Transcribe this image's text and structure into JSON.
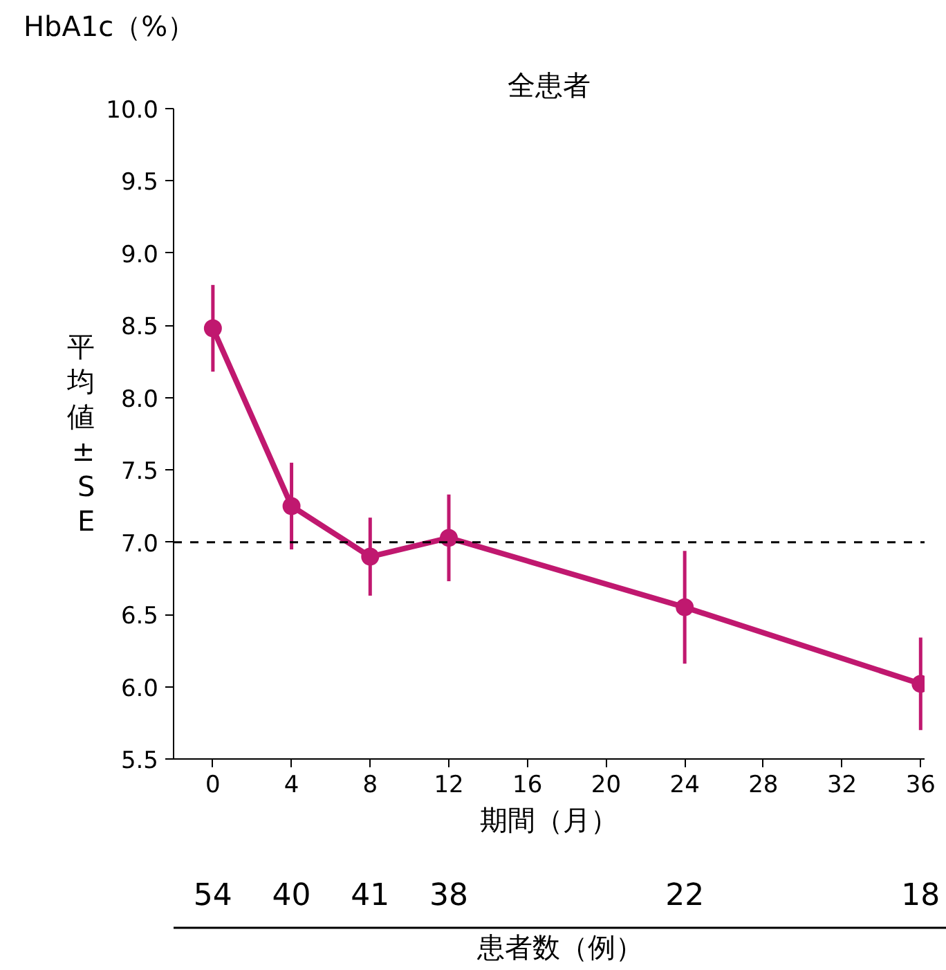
{
  "chart_data": {
    "type": "line",
    "title": "全患者",
    "xlabel": "期間（月）",
    "ylabel": "HbA1c（%）",
    "x": [
      0,
      4,
      8,
      12,
      24,
      36
    ],
    "series": [
      {
        "color": "#c0186f",
        "values": [
          8.48,
          7.25,
          6.9,
          7.03,
          6.55,
          6.02
        ],
        "errors": [
          0.3,
          0.3,
          0.27,
          0.3,
          0.39,
          0.32
        ]
      }
    ],
    "xlim": [
      -2,
      36.2
    ],
    "xticks": [
      0,
      4,
      8,
      12,
      16,
      20,
      24,
      28,
      32,
      36
    ],
    "ylim": [
      5.5,
      10.0
    ],
    "yticks": [
      {
        "value": 5.5,
        "label": "5.5"
      },
      {
        "value": 6,
        "label": "6.0"
      },
      {
        "value": 6.5,
        "label": "6.5"
      },
      {
        "value": 7,
        "label": "7.0"
      },
      {
        "value": 7.5,
        "label": "7.5"
      },
      {
        "value": 8,
        "label": "8.0"
      },
      {
        "value": 8.5,
        "label": "8.5"
      },
      {
        "value": 9,
        "label": "9.0"
      },
      {
        "value": 9.5,
        "label": "9.5"
      },
      {
        "value": 10,
        "label": "10.0"
      }
    ],
    "ref_lines": [
      {
        "axis": "y",
        "value": 7,
        "color": "#000000",
        "line_style": "dashed"
      }
    ],
    "annotations": [
      "平均値±SE",
      "54",
      "40",
      "41",
      "38",
      "22",
      "18",
      "患者数（例）"
    ],
    "grid": false,
    "marker": "circle",
    "line_style": "solid"
  }
}
